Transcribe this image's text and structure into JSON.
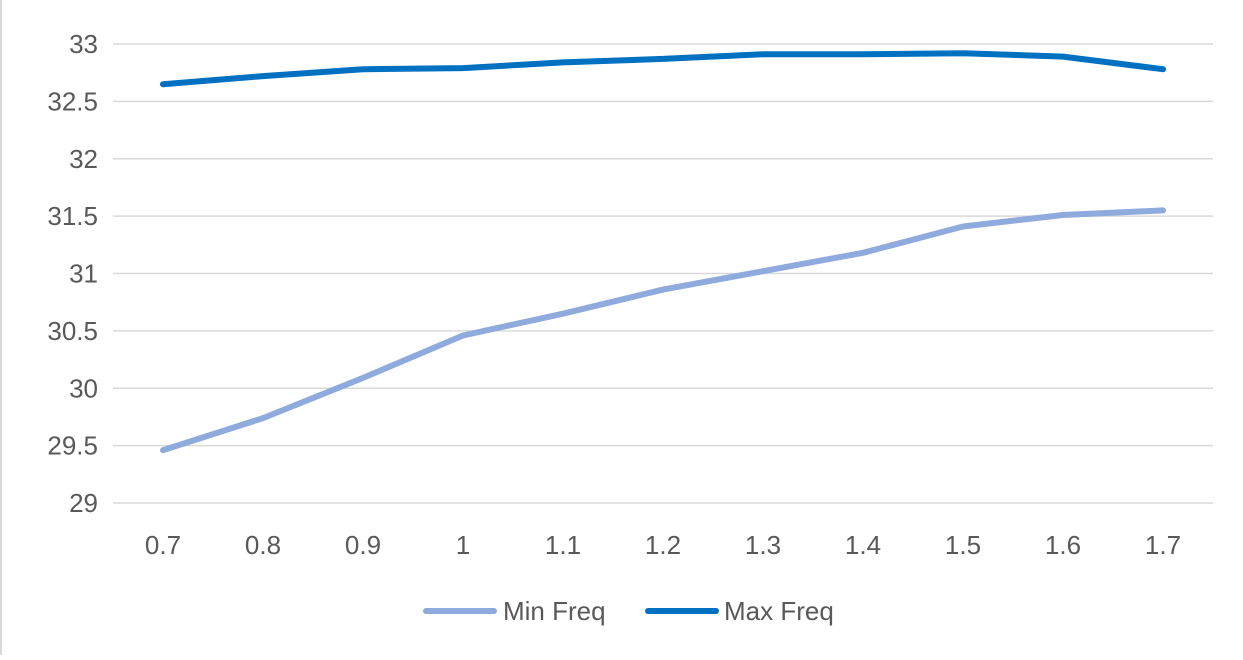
{
  "chart_data": {
    "type": "line",
    "title": "",
    "xlabel": "",
    "ylabel": "",
    "x": [
      "0.7",
      "0.8",
      "0.9",
      "1",
      "1.1",
      "1.2",
      "1.3",
      "1.4",
      "1.5",
      "1.6",
      "1.7"
    ],
    "ylim": [
      29,
      33
    ],
    "yticks": [
      "29",
      "29.5",
      "30",
      "30.5",
      "31",
      "31.5",
      "32",
      "32.5",
      "33"
    ],
    "grid": true,
    "legend_position": "bottom",
    "series": [
      {
        "name": "Min Freq",
        "color": "#8faadc",
        "values": [
          29.46,
          29.74,
          30.09,
          30.46,
          30.65,
          30.86,
          31.02,
          31.18,
          31.41,
          31.51,
          31.55
        ]
      },
      {
        "name": "Max Freq",
        "color": "#0070c0",
        "values": [
          32.65,
          32.72,
          32.78,
          32.79,
          32.84,
          32.87,
          32.91,
          32.91,
          32.92,
          32.89,
          32.78
        ]
      }
    ]
  }
}
